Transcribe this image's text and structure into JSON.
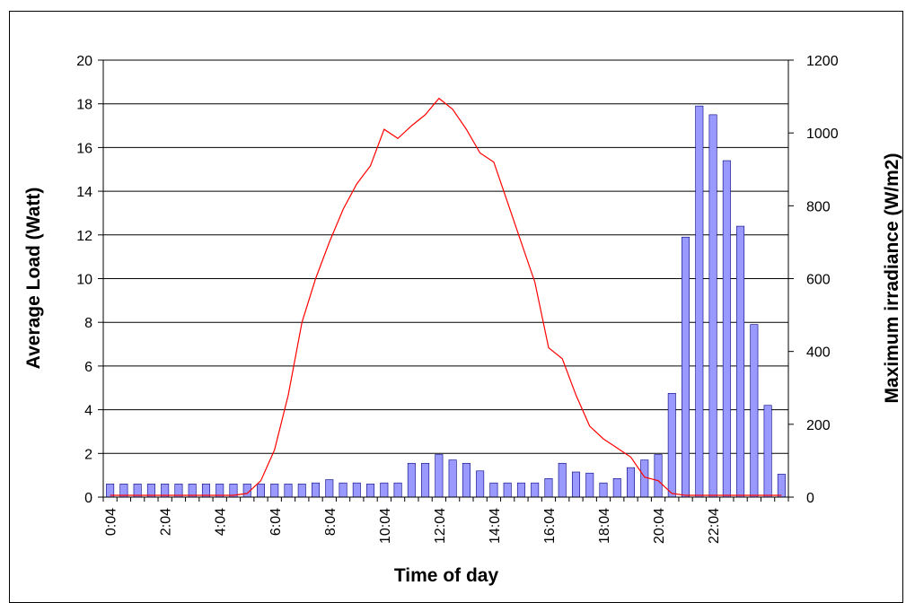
{
  "chart_data": {
    "type": "bar+line",
    "xlabel": "Time of day",
    "ylabel_left": "Average Load (Watt)",
    "ylabel_right": "Maximum irradiance (W/m2)",
    "ylim_left": [
      0,
      20
    ],
    "ylim_right": [
      0,
      1200
    ],
    "yticks_left": [
      "0",
      "2",
      "4",
      "6",
      "8",
      "10",
      "12",
      "14",
      "16",
      "18",
      "20"
    ],
    "yticks_right": [
      "0",
      "200",
      "400",
      "600",
      "800",
      "1000",
      "1200"
    ],
    "xtick_labels": [
      "0:04",
      "2:04",
      "4:04",
      "6:04",
      "8:04",
      "10:04",
      "12:04",
      "14:04",
      "16:04",
      "18:04",
      "20:04",
      "22:04"
    ],
    "grid": "horizontal",
    "colors": {
      "bar_fill": "#9999ff",
      "bar_stroke": "#000080",
      "line": "#ff0000"
    },
    "series": [
      {
        "type": "bar",
        "axis": "left",
        "values": [
          0.6,
          0.6,
          0.6,
          0.6,
          0.6,
          0.6,
          0.6,
          0.6,
          0.6,
          0.6,
          0.6,
          0.6,
          0.6,
          0.6,
          0.6,
          0.65,
          0.8,
          0.65,
          0.65,
          0.6,
          0.65,
          0.65,
          1.55,
          1.55,
          1.95,
          1.7,
          1.55,
          1.2,
          0.65,
          0.65,
          0.65,
          0.65,
          0.85,
          1.55,
          1.15,
          1.1,
          0.65,
          0.85,
          1.35,
          1.7,
          1.95,
          4.75,
          11.9,
          17.9,
          17.5,
          15.4,
          12.4,
          7.9,
          4.2,
          1.05
        ]
      },
      {
        "type": "line",
        "axis": "right",
        "values": [
          5,
          5,
          5,
          5,
          5,
          5,
          5,
          5,
          5,
          5,
          10,
          45,
          130,
          280,
          480,
          600,
          700,
          790,
          860,
          910,
          1010,
          985,
          1020,
          1050,
          1095,
          1065,
          1010,
          945,
          920,
          810,
          700,
          590,
          410,
          380,
          280,
          195,
          160,
          135,
          110,
          55,
          45,
          10,
          5,
          5,
          5,
          5,
          5,
          5,
          5,
          5
        ]
      }
    ]
  }
}
